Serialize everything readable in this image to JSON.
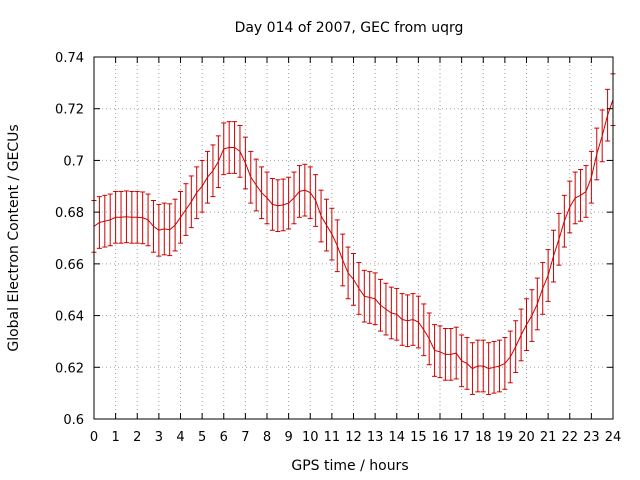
{
  "chart_data": {
    "type": "line",
    "title": "Day 014 of 2007, GEC from uqrg",
    "xlabel": "GPS time / hours",
    "ylabel": "Global Electron Content / GECUs",
    "xlim": [
      0,
      24
    ],
    "ylim": [
      0.6,
      0.74
    ],
    "xticks": [
      0,
      1,
      2,
      3,
      4,
      5,
      6,
      7,
      8,
      9,
      10,
      11,
      12,
      13,
      14,
      15,
      16,
      17,
      18,
      19,
      20,
      21,
      22,
      23,
      24
    ],
    "yticks": [
      0.6,
      0.62,
      0.64,
      0.66,
      0.68,
      0.7,
      0.72,
      0.74
    ],
    "ytick_labels": [
      "0.6",
      "0.62",
      "0.64",
      "0.66",
      "0.68",
      "0.7",
      "0.72",
      "0.74"
    ],
    "grid": true,
    "series_color": "#cc0000",
    "error": 0.01,
    "x": [
      0,
      0.25,
      0.5,
      0.75,
      1,
      1.25,
      1.5,
      1.75,
      2,
      2.25,
      2.5,
      2.75,
      3,
      3.25,
      3.5,
      3.75,
      4,
      4.25,
      4.5,
      4.75,
      5,
      5.25,
      5.5,
      5.75,
      6,
      6.25,
      6.5,
      6.75,
      7,
      7.25,
      7.5,
      7.75,
      8,
      8.25,
      8.5,
      8.75,
      9,
      9.25,
      9.5,
      9.75,
      10,
      10.25,
      10.5,
      10.75,
      11,
      11.25,
      11.5,
      11.75,
      12,
      12.25,
      12.5,
      12.75,
      13,
      13.25,
      13.5,
      13.75,
      14,
      14.25,
      14.5,
      14.75,
      15,
      15.25,
      15.5,
      15.75,
      16,
      16.25,
      16.5,
      16.75,
      17,
      17.25,
      17.5,
      17.75,
      18,
      18.25,
      18.5,
      18.75,
      19,
      19.25,
      19.5,
      19.75,
      20,
      20.25,
      20.5,
      20.75,
      21,
      21.25,
      21.5,
      21.75,
      22,
      22.25,
      22.5,
      22.75,
      23,
      23.25,
      23.5,
      23.75,
      24
    ],
    "values": [
      0.6745,
      0.676,
      0.6765,
      0.677,
      0.678,
      0.678,
      0.6782,
      0.678,
      0.678,
      0.6778,
      0.677,
      0.6745,
      0.673,
      0.6735,
      0.6732,
      0.675,
      0.678,
      0.681,
      0.684,
      0.6875,
      0.69,
      0.6935,
      0.696,
      0.6995,
      0.7045,
      0.705,
      0.705,
      0.7035,
      0.699,
      0.6935,
      0.6905,
      0.6875,
      0.6855,
      0.683,
      0.6825,
      0.6828,
      0.6835,
      0.6855,
      0.688,
      0.6885,
      0.6875,
      0.6845,
      0.6785,
      0.675,
      0.6715,
      0.667,
      0.6615,
      0.6565,
      0.654,
      0.6505,
      0.6475,
      0.647,
      0.6465,
      0.644,
      0.6425,
      0.641,
      0.6405,
      0.6385,
      0.638,
      0.6385,
      0.6375,
      0.6345,
      0.631,
      0.6265,
      0.626,
      0.625,
      0.625,
      0.6255,
      0.6225,
      0.6215,
      0.6195,
      0.6205,
      0.6205,
      0.6195,
      0.62,
      0.6205,
      0.6215,
      0.624,
      0.628,
      0.6325,
      0.6365,
      0.64,
      0.6445,
      0.6505,
      0.6555,
      0.663,
      0.6695,
      0.6765,
      0.682,
      0.6855,
      0.6865,
      0.688,
      0.6935,
      0.7025,
      0.7095,
      0.7175,
      0.7235
    ]
  }
}
